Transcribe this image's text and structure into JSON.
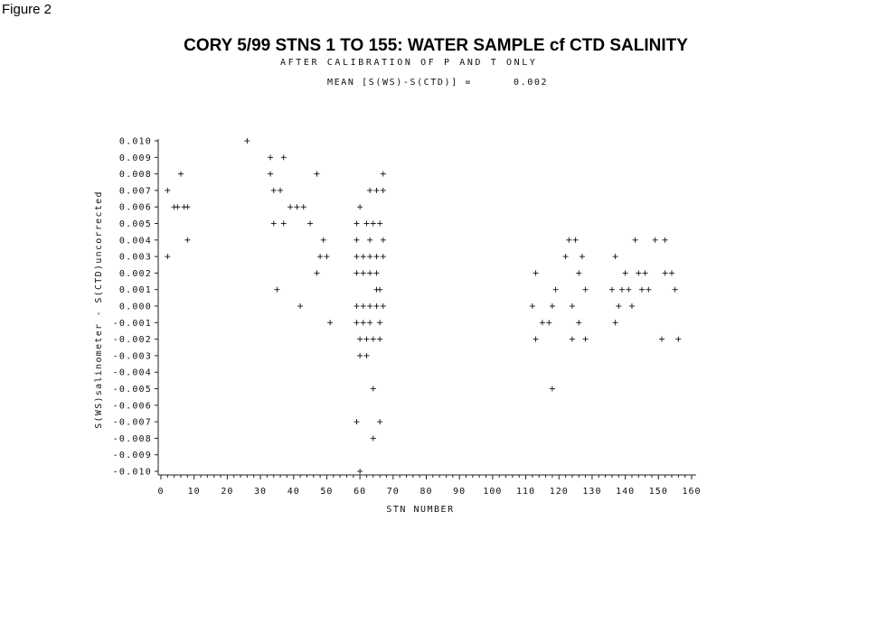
{
  "figure_label": "Figure 2",
  "chart_data": {
    "type": "scatter",
    "title": "CORY 5/99   STNS 1 TO 155: WATER SAMPLE cf CTD SALINITY",
    "subtitle": "AFTER CALIBRATION OF P AND T ONLY",
    "annotation_label": "MEAN [S(WS)-S(CTD)] =",
    "annotation_value": "0.002",
    "xlabel": "STN NUMBER",
    "ylabel": "S(WS)salinometer - S(CTD)uncorrected",
    "xlim": [
      0,
      160
    ],
    "ylim": [
      -0.01,
      0.01
    ],
    "x_ticks": [
      "0",
      "10",
      "20",
      "30",
      "40",
      "50",
      "60",
      "70",
      "80",
      "90",
      "100",
      "110",
      "120",
      "130",
      "140",
      "150",
      "160"
    ],
    "y_ticks": [
      "0.010",
      "0.009",
      "0.008",
      "0.007",
      "0.006",
      "0.005",
      "0.004",
      "0.003",
      "0.002",
      "0.001",
      "0.000",
      "-0.001",
      "-0.002",
      "-0.003",
      "-0.004",
      "-0.005",
      "-0.006",
      "-0.007",
      "-0.008",
      "-0.009",
      "-0.010"
    ],
    "marker": "+",
    "grid": false,
    "points": [
      [
        26,
        0.01
      ],
      [
        33,
        0.009
      ],
      [
        37,
        0.009
      ],
      [
        6,
        0.008
      ],
      [
        33,
        0.008
      ],
      [
        47,
        0.008
      ],
      [
        67,
        0.008
      ],
      [
        2,
        0.007
      ],
      [
        34,
        0.007
      ],
      [
        36,
        0.007
      ],
      [
        63,
        0.007
      ],
      [
        65,
        0.007
      ],
      [
        67,
        0.007
      ],
      [
        4,
        0.006
      ],
      [
        5,
        0.006
      ],
      [
        7,
        0.006
      ],
      [
        8,
        0.006
      ],
      [
        39,
        0.006
      ],
      [
        41,
        0.006
      ],
      [
        43,
        0.006
      ],
      [
        60,
        0.006
      ],
      [
        34,
        0.005
      ],
      [
        37,
        0.005
      ],
      [
        45,
        0.005
      ],
      [
        59,
        0.005
      ],
      [
        62,
        0.005
      ],
      [
        64,
        0.005
      ],
      [
        66,
        0.005
      ],
      [
        8,
        0.004
      ],
      [
        49,
        0.004
      ],
      [
        59,
        0.004
      ],
      [
        63,
        0.004
      ],
      [
        67,
        0.004
      ],
      [
        123,
        0.004
      ],
      [
        125,
        0.004
      ],
      [
        143,
        0.004
      ],
      [
        149,
        0.004
      ],
      [
        152,
        0.004
      ],
      [
        2,
        0.003
      ],
      [
        48,
        0.003
      ],
      [
        50,
        0.003
      ],
      [
        59,
        0.003
      ],
      [
        61,
        0.003
      ],
      [
        63,
        0.003
      ],
      [
        65,
        0.003
      ],
      [
        67,
        0.003
      ],
      [
        122,
        0.003
      ],
      [
        127,
        0.003
      ],
      [
        137,
        0.003
      ],
      [
        47,
        0.002
      ],
      [
        59,
        0.002
      ],
      [
        61,
        0.002
      ],
      [
        63,
        0.002
      ],
      [
        65,
        0.002
      ],
      [
        113,
        0.002
      ],
      [
        126,
        0.002
      ],
      [
        140,
        0.002
      ],
      [
        144,
        0.002
      ],
      [
        146,
        0.002
      ],
      [
        152,
        0.002
      ],
      [
        154,
        0.002
      ],
      [
        35,
        0.001
      ],
      [
        65,
        0.001
      ],
      [
        66,
        0.001
      ],
      [
        119,
        0.001
      ],
      [
        128,
        0.001
      ],
      [
        136,
        0.001
      ],
      [
        139,
        0.001
      ],
      [
        141,
        0.001
      ],
      [
        145,
        0.001
      ],
      [
        147,
        0.001
      ],
      [
        155,
        0.001
      ],
      [
        42,
        0.0
      ],
      [
        59,
        0.0
      ],
      [
        61,
        0.0
      ],
      [
        63,
        0.0
      ],
      [
        65,
        0.0
      ],
      [
        67,
        0.0
      ],
      [
        112,
        0.0
      ],
      [
        118,
        0.0
      ],
      [
        124,
        0.0
      ],
      [
        138,
        0.0
      ],
      [
        142,
        0.0
      ],
      [
        51,
        -0.001
      ],
      [
        59,
        -0.001
      ],
      [
        61,
        -0.001
      ],
      [
        63,
        -0.001
      ],
      [
        66,
        -0.001
      ],
      [
        115,
        -0.001
      ],
      [
        117,
        -0.001
      ],
      [
        126,
        -0.001
      ],
      [
        137,
        -0.001
      ],
      [
        60,
        -0.002
      ],
      [
        62,
        -0.002
      ],
      [
        64,
        -0.002
      ],
      [
        66,
        -0.002
      ],
      [
        113,
        -0.002
      ],
      [
        124,
        -0.002
      ],
      [
        128,
        -0.002
      ],
      [
        151,
        -0.002
      ],
      [
        156,
        -0.002
      ],
      [
        60,
        -0.003
      ],
      [
        62,
        -0.003
      ],
      [
        64,
        -0.005
      ],
      [
        118,
        -0.005
      ],
      [
        59,
        -0.007
      ],
      [
        66,
        -0.007
      ],
      [
        64,
        -0.008
      ],
      [
        60,
        -0.01
      ]
    ]
  }
}
